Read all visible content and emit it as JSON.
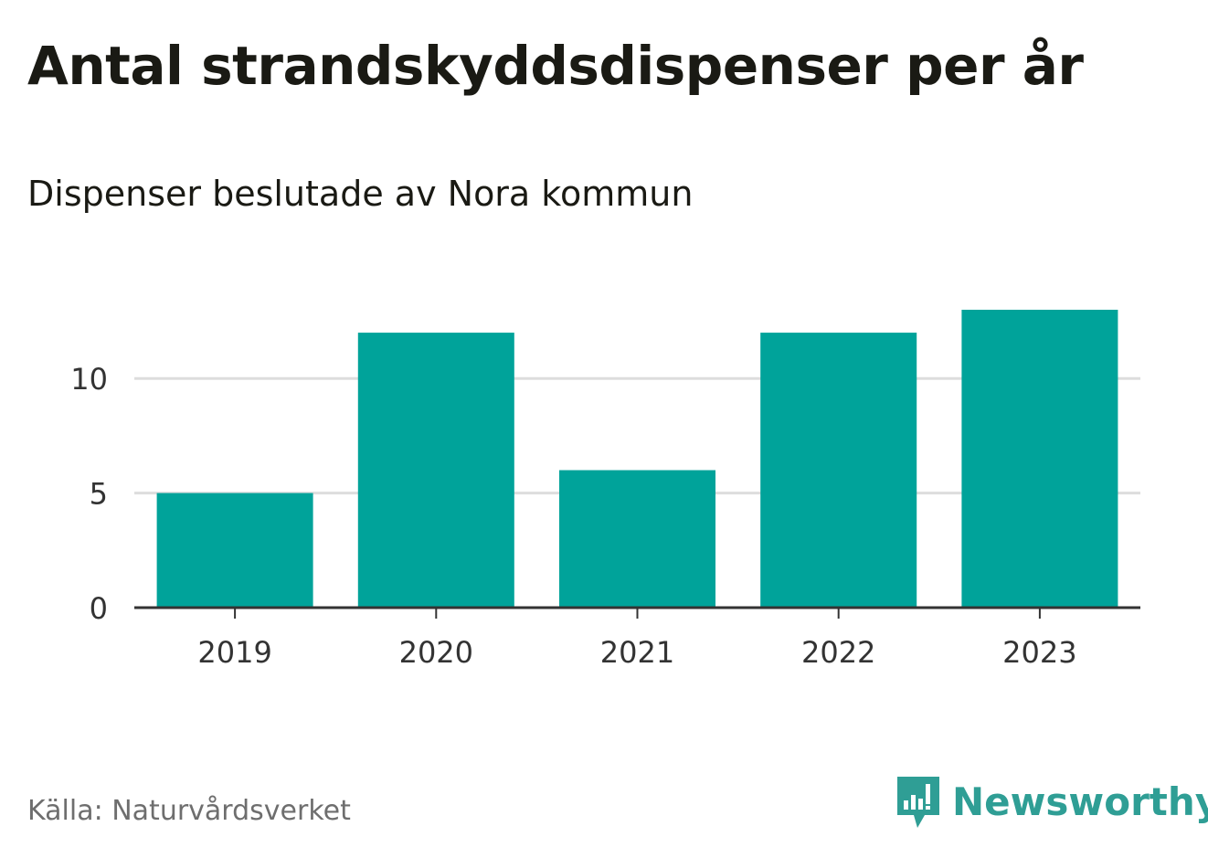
{
  "header": {
    "title": "Antal strandskyddsdispenser per år",
    "subtitle": "Dispenser beslutade av Nora kommun"
  },
  "footer": {
    "source": "Källa: Naturvårdsverket",
    "brand": "Newsworthy",
    "brand_icon": "newsworthy-logo-icon"
  },
  "colors": {
    "bar": "#00a39a",
    "grid": "#dddddd",
    "axis": "#333333",
    "brand": "#2f9e95"
  },
  "chart_data": {
    "type": "bar",
    "title": "Antal strandskyddsdispenser per år",
    "subtitle": "Dispenser beslutade av Nora kommun",
    "categories": [
      "2019",
      "2020",
      "2021",
      "2022",
      "2023"
    ],
    "values": [
      5,
      12,
      6,
      12,
      13
    ],
    "xlabel": "",
    "ylabel": "",
    "ylim": [
      0,
      13
    ],
    "yticks": [
      0,
      5,
      10
    ],
    "grid": true,
    "legend": "none"
  }
}
